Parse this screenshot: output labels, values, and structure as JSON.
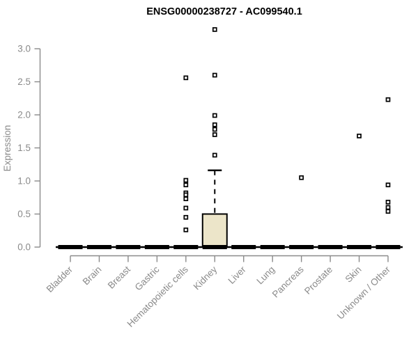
{
  "chart_data": {
    "type": "boxplot",
    "title": "ENSG00000238727 - AC099540.1",
    "xlabel": "",
    "ylabel": "Expression",
    "ylim": [
      0.0,
      3.3
    ],
    "yticks": [
      0.0,
      0.5,
      1.0,
      1.5,
      2.0,
      2.5,
      3.0
    ],
    "grid": false,
    "legend": "none",
    "categories": [
      "Bladder",
      "Brain",
      "Breast",
      "Gastric",
      "Hematopoietic cells",
      "Kidney",
      "Liver",
      "Lung",
      "Pancreas",
      "Prostate",
      "Skin",
      "Unknown / Other"
    ],
    "series": [
      {
        "category": "Bladder",
        "whisker_low": 0,
        "q1": 0,
        "median": 0,
        "q3": 0,
        "whisker_high": 0,
        "outliers": []
      },
      {
        "category": "Brain",
        "whisker_low": 0,
        "q1": 0,
        "median": 0,
        "q3": 0,
        "whisker_high": 0,
        "outliers": []
      },
      {
        "category": "Breast",
        "whisker_low": 0,
        "q1": 0,
        "median": 0,
        "q3": 0,
        "whisker_high": 0,
        "outliers": []
      },
      {
        "category": "Gastric",
        "whisker_low": 0,
        "q1": 0,
        "median": 0,
        "q3": 0,
        "whisker_high": 0,
        "outliers": []
      },
      {
        "category": "Hematopoietic cells",
        "whisker_low": 0,
        "q1": 0,
        "median": 0,
        "q3": 0,
        "whisker_high": 0,
        "outliers": [
          2.56,
          1.01,
          0.94,
          0.82,
          0.79,
          0.73,
          0.59,
          0.45,
          0.26
        ]
      },
      {
        "category": "Kidney",
        "whisker_low": 0,
        "q1": 0,
        "median": 0,
        "q3": 0.5,
        "whisker_high": 1.16,
        "outliers": [
          3.29,
          2.6,
          1.99,
          1.85,
          1.78,
          1.7,
          1.39
        ]
      },
      {
        "category": "Liver",
        "whisker_low": 0,
        "q1": 0,
        "median": 0,
        "q3": 0,
        "whisker_high": 0,
        "outliers": []
      },
      {
        "category": "Lung",
        "whisker_low": 0,
        "q1": 0,
        "median": 0,
        "q3": 0,
        "whisker_high": 0,
        "outliers": []
      },
      {
        "category": "Pancreas",
        "whisker_low": 0,
        "q1": 0,
        "median": 0,
        "q3": 0,
        "whisker_high": 0,
        "outliers": [
          1.05
        ]
      },
      {
        "category": "Prostate",
        "whisker_low": 0,
        "q1": 0,
        "median": 0,
        "q3": 0,
        "whisker_high": 0,
        "outliers": []
      },
      {
        "category": "Skin",
        "whisker_low": 0,
        "q1": 0,
        "median": 0,
        "q3": 0,
        "whisker_high": 0,
        "outliers": [
          1.68
        ]
      },
      {
        "category": "Unknown / Other",
        "whisker_low": 0,
        "q1": 0,
        "median": 0,
        "q3": 0,
        "whisker_high": 0,
        "outliers": [
          2.23,
          0.94,
          0.68,
          0.6,
          0.54
        ]
      }
    ],
    "colors": {
      "box_fill": "#ece5c9",
      "box_stroke": "#000000",
      "bar": "#000000",
      "outlier_stroke": "#000000",
      "outlier_fill": "#ffffff",
      "axis": "#8a8a8a",
      "tick_text": "#8a8a8a",
      "title_text": "#000000",
      "background": "#ffffff"
    }
  }
}
